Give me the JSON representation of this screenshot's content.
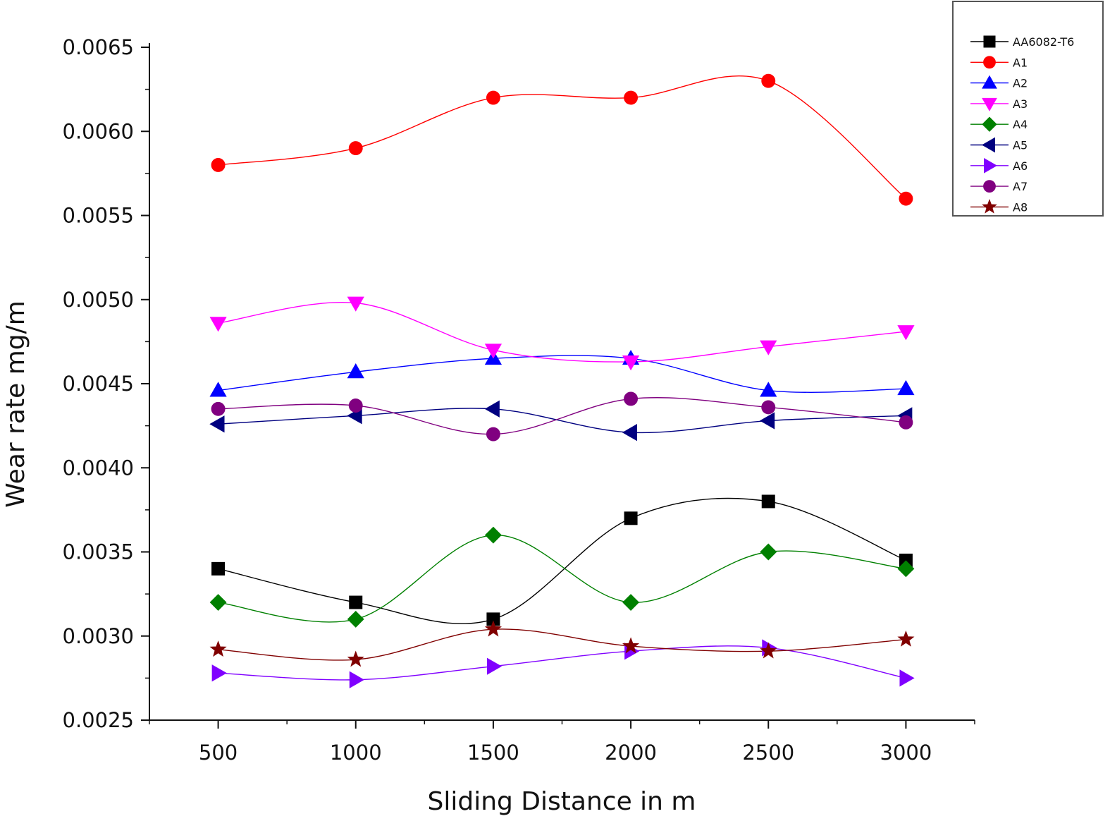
{
  "chart_data": {
    "type": "line",
    "title": "",
    "xlabel": "Sliding Distance in m",
    "ylabel": "Wear rate mg/m",
    "x": [
      500,
      1000,
      1500,
      2000,
      2500,
      3000
    ],
    "x_ticks": [
      "500",
      "1000",
      "1500",
      "2000",
      "2500",
      "3000"
    ],
    "xlim": [
      250,
      3250
    ],
    "ylim": [
      0.0025,
      0.0065
    ],
    "y_ticks": [
      "0.0025",
      "0.0030",
      "0.0035",
      "0.0040",
      "0.0045",
      "0.0050",
      "0.0055",
      "0.0060",
      "0.0065"
    ],
    "grid": false,
    "legend_position": "top-right",
    "series": [
      {
        "name": "AA6082-T6",
        "color": "#000000",
        "marker": "square",
        "values": [
          0.0034,
          0.0032,
          0.0031,
          0.0037,
          0.0038,
          0.00345
        ]
      },
      {
        "name": "A1",
        "color": "#ff0000",
        "marker": "circle",
        "values": [
          0.0058,
          0.0059,
          0.0062,
          0.0062,
          0.0063,
          0.0056
        ]
      },
      {
        "name": "A2",
        "color": "#0000ff",
        "marker": "triangle-up",
        "values": [
          0.00446,
          0.00457,
          0.00465,
          0.00465,
          0.00446,
          0.00447
        ]
      },
      {
        "name": "A3",
        "color": "#ff00ff",
        "marker": "triangle-down",
        "values": [
          0.00486,
          0.00498,
          0.0047,
          0.00463,
          0.00472,
          0.00481
        ]
      },
      {
        "name": "A4",
        "color": "#008000",
        "marker": "diamond",
        "values": [
          0.0032,
          0.0031,
          0.0036,
          0.0032,
          0.0035,
          0.0034
        ]
      },
      {
        "name": "A5",
        "color": "#000080",
        "marker": "triangle-left",
        "values": [
          0.00426,
          0.00431,
          0.00435,
          0.00421,
          0.00428,
          0.00431
        ]
      },
      {
        "name": "A6",
        "color": "#8000ff",
        "marker": "triangle-right",
        "values": [
          0.00278,
          0.00274,
          0.00282,
          0.00291,
          0.00293,
          0.00275
        ]
      },
      {
        "name": "A7",
        "color": "#800080",
        "marker": "circle",
        "values": [
          0.00435,
          0.00437,
          0.0042,
          0.00441,
          0.00436,
          0.00427
        ]
      },
      {
        "name": "A8",
        "color": "#800000",
        "marker": "star",
        "values": [
          0.00292,
          0.00286,
          0.00304,
          0.00294,
          0.00291,
          0.00298
        ]
      }
    ]
  }
}
